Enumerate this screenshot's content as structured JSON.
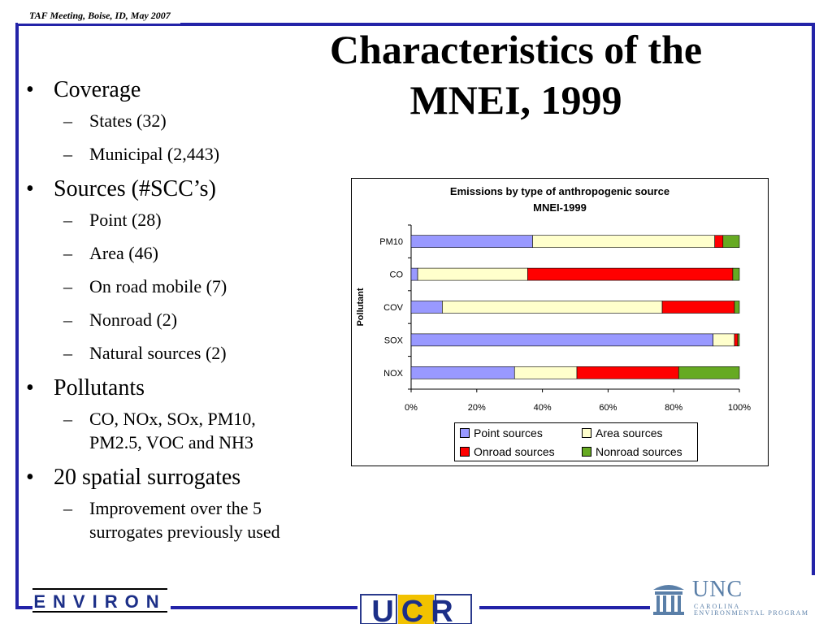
{
  "header": {
    "tag": "TAF Meeting, Boise, ID, May 2007"
  },
  "slide": {
    "title_lines": [
      "Characteristics of the",
      "MNEI, 1999"
    ],
    "bullets": [
      {
        "text": "Coverage",
        "sub": [
          "States (32)",
          "Municipal (2,443)"
        ]
      },
      {
        "text": "Sources (#SCC’s)",
        "sub": [
          "Point (28)",
          "Area (46)",
          "On road mobile (7)",
          "Nonroad (2)",
          "Natural sources (2)"
        ]
      },
      {
        "text": "Pollutants",
        "sub": [
          "CO, NOx, SOx, PM10, PM2.5, VOC and NH3"
        ]
      },
      {
        "text": "20 spatial surrogates",
        "sub": [
          "Improvement over the 5 surrogates previously used"
        ]
      }
    ]
  },
  "chart_data": {
    "type": "bar",
    "orientation": "horizontal",
    "stacked": "100%",
    "title": "Emissions by type of anthropogenic source",
    "subtitle": "MNEI-1999",
    "ylabel": "Pollutant",
    "xlabel": "",
    "categories": [
      "PM10",
      "CO",
      "COV",
      "SOX",
      "NOX"
    ],
    "xlim": [
      0,
      100
    ],
    "xticks": [
      "0%",
      "20%",
      "40%",
      "60%",
      "80%",
      "100%"
    ],
    "series": [
      {
        "name": "Point sources",
        "color": "#9999ff",
        "values": [
          37,
          2,
          9.5,
          92,
          31.5
        ]
      },
      {
        "name": "Area sources",
        "color": "#ffffcc",
        "values": [
          55.5,
          33.5,
          67,
          6.5,
          19
        ]
      },
      {
        "name": "Onroad sources",
        "color": "#ff0000",
        "values": [
          2.5,
          62.5,
          22,
          1,
          31
        ]
      },
      {
        "name": "Nonroad sources",
        "color": "#66aa22",
        "values": [
          5,
          2,
          1.5,
          0.5,
          18.5
        ]
      }
    ],
    "legend_position": "bottom",
    "grid": false
  },
  "logos": {
    "environ": "ENVIRON",
    "ucr": "UCR",
    "unc": {
      "name": "UNC",
      "line1": "CAROLINA",
      "line2": "ENVIRONMENTAL PROGRAM"
    }
  },
  "colors": {
    "frame": "#2323a8"
  }
}
